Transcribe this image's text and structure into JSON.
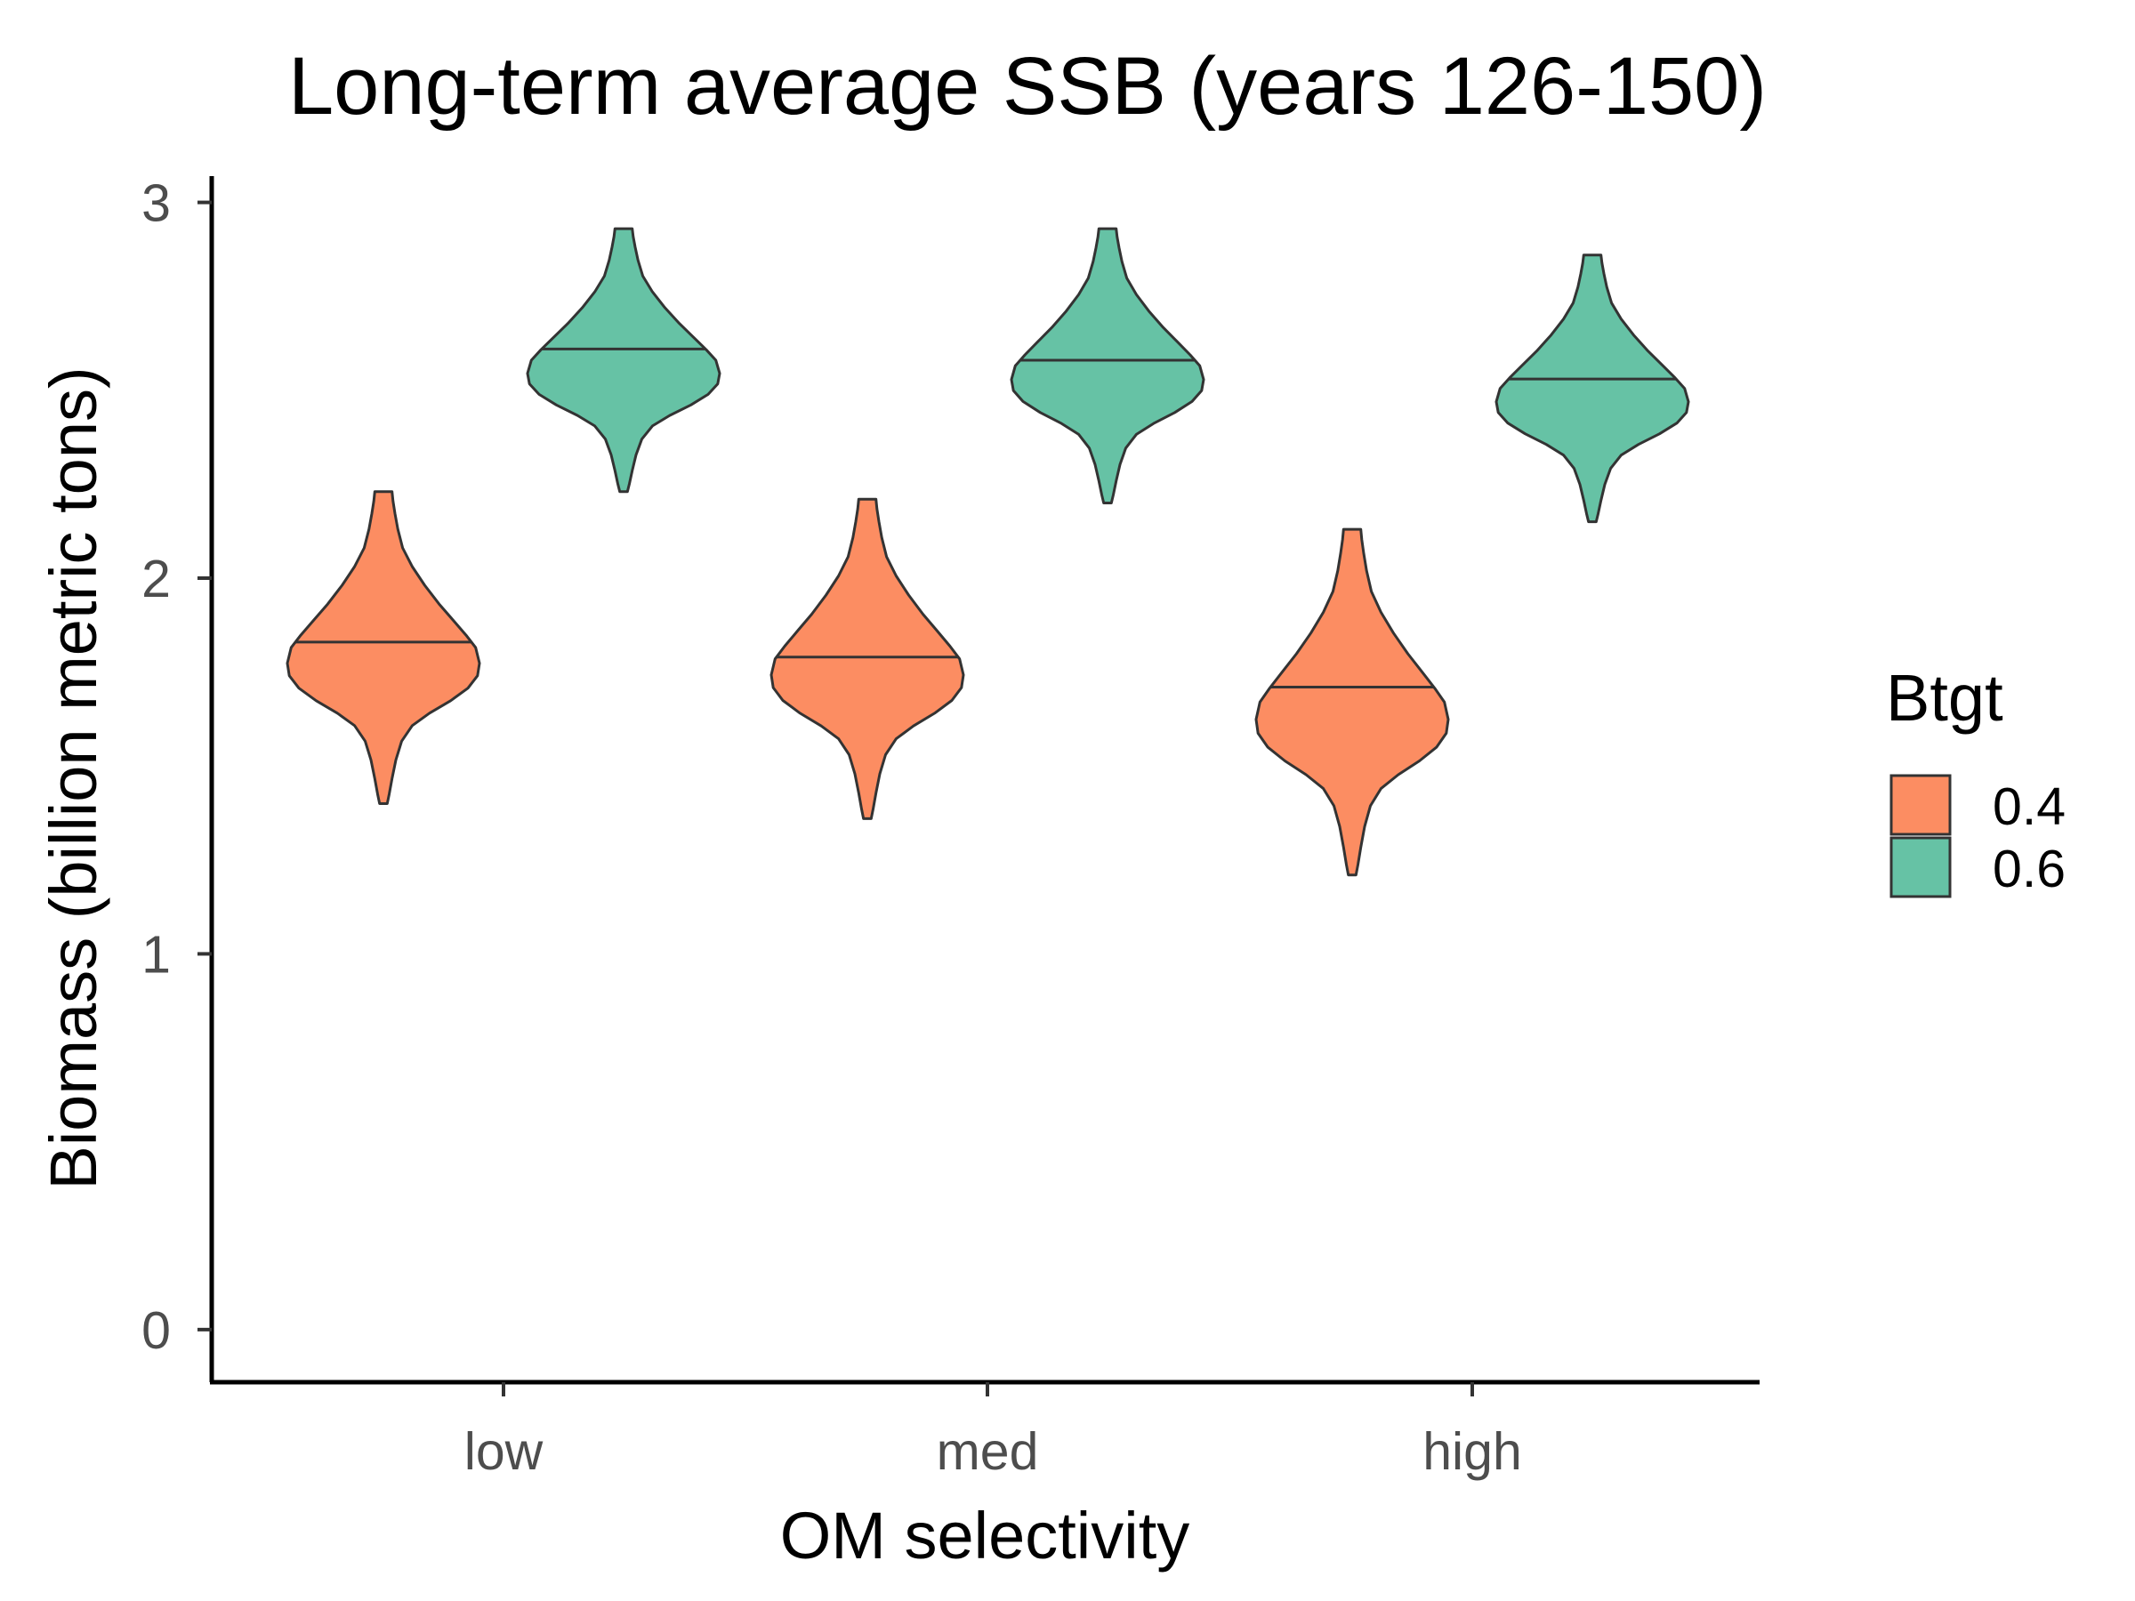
{
  "chart_data": {
    "type": "violin",
    "title": "Long-term average SSB (years 126-150)",
    "xlabel": "OM selectivity",
    "ylabel": "Biomass (billion metric tons)",
    "categories": [
      "low",
      "med",
      "high"
    ],
    "ylim": [
      -0.14,
      3.07
    ],
    "yticks": [
      "0",
      "1",
      "2",
      "3"
    ],
    "legend": {
      "title": "Btgt",
      "position": "right",
      "items": [
        {
          "label": "0.4",
          "color": "#fc8d62"
        },
        {
          "label": "0.6",
          "color": "#66c2a5"
        }
      ]
    },
    "series": [
      {
        "name": "0.4",
        "color": "#fc8d62",
        "violins": [
          {
            "category": "low",
            "min": 1.4,
            "max": 2.23,
            "median": 1.83
          },
          {
            "category": "med",
            "min": 1.36,
            "max": 2.21,
            "median": 1.79
          },
          {
            "category": "high",
            "min": 1.21,
            "max": 2.13,
            "median": 1.71
          }
        ]
      },
      {
        "name": "0.6",
        "color": "#66c2a5",
        "violins": [
          {
            "category": "low",
            "min": 2.23,
            "max": 2.93,
            "median": 2.61
          },
          {
            "category": "med",
            "min": 2.2,
            "max": 2.93,
            "median": 2.58
          },
          {
            "category": "high",
            "min": 2.15,
            "max": 2.86,
            "median": 2.53
          }
        ]
      }
    ]
  }
}
